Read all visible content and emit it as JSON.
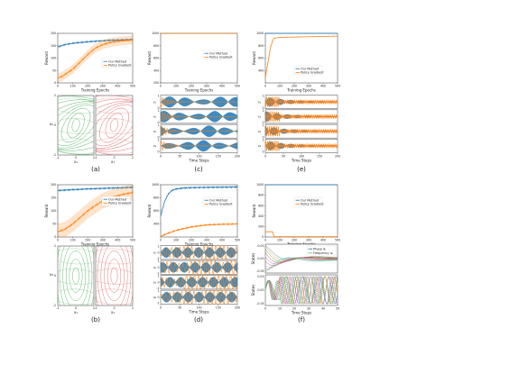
{
  "colors": {
    "ours": "#1f77b4",
    "pg": "#ff7f0e",
    "green": "#3aa84a",
    "red": "#d94f4f"
  },
  "legend": {
    "ours": "Our Method",
    "pg": "Policy Gradient"
  },
  "axis": {
    "reward": "Reward",
    "epochs": "Training Epochs",
    "steps": "Time Steps",
    "states": "States"
  },
  "panel_labels": [
    "(a)",
    "(b)",
    "(c)",
    "(d)",
    "(e)",
    "(f)"
  ],
  "phase_axis": {
    "x1": "x₁",
    "x2": "x₂"
  },
  "f_legend": {
    "phase": "Phase θᵢ",
    "freq": "Frequency ωᵢ"
  },
  "chart_data": [
    {
      "id": "a_top",
      "type": "line",
      "xlabel": "Training Epochs",
      "ylabel": "Reward",
      "xlim": [
        0,
        500
      ],
      "ylim": [
        0,
        200
      ],
      "xticks": [
        0,
        100,
        200,
        300,
        400,
        500
      ],
      "yticks": [
        0,
        50,
        100,
        150,
        200
      ],
      "series": [
        {
          "name": "Our Method",
          "x": [
            0,
            25,
            50,
            100,
            150,
            200,
            250,
            300,
            350,
            400,
            450,
            500
          ],
          "y": [
            145,
            150,
            155,
            160,
            163,
            166,
            168,
            170,
            172,
            173,
            174,
            175
          ]
        },
        {
          "name": "Policy Gradient",
          "x": [
            0,
            25,
            50,
            100,
            150,
            200,
            250,
            300,
            350,
            400,
            450,
            500
          ],
          "y": [
            20,
            25,
            35,
            55,
            85,
            115,
            140,
            155,
            163,
            168,
            171,
            173
          ]
        }
      ]
    },
    {
      "id": "c_top",
      "type": "line",
      "xlabel": "Training Epochs",
      "ylabel": "Reward",
      "xlim": [
        0,
        500
      ],
      "ylim": [
        200,
        1000
      ],
      "xticks": [
        0,
        100,
        200,
        300,
        400,
        500
      ],
      "yticks": [
        200,
        400,
        600,
        800,
        1000
      ],
      "series": [
        {
          "name": "Our Method",
          "x": [
            0,
            500
          ],
          "y": [
            1000,
            1000
          ]
        },
        {
          "name": "Policy Gradient",
          "x": [
            0,
            500
          ],
          "y": [
            1000,
            1000
          ]
        }
      ]
    },
    {
      "id": "e_top",
      "type": "line",
      "xlabel": "Training Epochs",
      "ylabel": "Reward",
      "xlim": [
        0,
        500
      ],
      "ylim": [
        200,
        1000
      ],
      "xticks": [
        0,
        100,
        200,
        300,
        400,
        500
      ],
      "yticks": [
        400,
        600,
        800,
        1000
      ],
      "series": [
        {
          "name": "Our Method",
          "x": [
            0,
            500
          ],
          "y": [
            1000,
            1000
          ]
        },
        {
          "name": "Policy Gradient",
          "x": [
            0,
            10,
            20,
            35,
            50,
            60,
            100,
            200,
            300,
            400,
            500
          ],
          "y": [
            280,
            420,
            560,
            760,
            880,
            920,
            935,
            940,
            945,
            950,
            955
          ]
        }
      ]
    },
    {
      "id": "b_top",
      "type": "line",
      "xlabel": "Training Epochs",
      "ylabel": "Reward",
      "xlim": [
        0,
        500
      ],
      "ylim": [
        0,
        200
      ],
      "xticks": [
        0,
        100,
        200,
        300,
        400,
        500
      ],
      "yticks": [
        0,
        50,
        100,
        150,
        200
      ],
      "series": [
        {
          "name": "Our Method",
          "x": [
            0,
            100,
            200,
            300,
            400,
            500
          ],
          "y": [
            178,
            181,
            184,
            186,
            188,
            190
          ]
        },
        {
          "name": "Policy Gradient",
          "x": [
            0,
            50,
            100,
            150,
            200,
            250,
            300,
            350,
            400,
            450,
            500
          ],
          "y": [
            20,
            30,
            50,
            75,
            100,
            120,
            138,
            150,
            158,
            165,
            170
          ]
        }
      ]
    },
    {
      "id": "d_top",
      "type": "line",
      "xlabel": "Training Epochs",
      "ylabel": "Reward",
      "xlim": [
        0,
        500
      ],
      "ylim": [
        200,
        1000
      ],
      "xticks": [
        0,
        100,
        200,
        300,
        400,
        500
      ],
      "yticks": [
        400,
        600,
        800,
        1000
      ],
      "series": [
        {
          "name": "Our Method",
          "x": [
            0,
            25,
            50,
            75,
            100,
            150,
            200,
            300,
            400,
            500
          ],
          "y": [
            520,
            740,
            860,
            915,
            935,
            950,
            955,
            960,
            962,
            965
          ]
        },
        {
          "name": "Policy Gradient",
          "x": [
            0,
            50,
            100,
            150,
            200,
            250,
            300,
            400,
            500
          ],
          "y": [
            210,
            260,
            300,
            330,
            355,
            370,
            385,
            395,
            400
          ]
        }
      ]
    },
    {
      "id": "f_top",
      "type": "line",
      "xlabel": "Training Epochs",
      "ylabel": "Reward",
      "xlim": [
        0,
        500
      ],
      "ylim": [
        0,
        1000
      ],
      "xticks": [
        0,
        100,
        200,
        300,
        400,
        500
      ],
      "yticks": [
        0,
        200,
        400,
        600,
        800,
        1000
      ],
      "series": [
        {
          "name": "Our Method",
          "x": [
            0,
            500
          ],
          "y": [
            1000,
            1000
          ]
        },
        {
          "name": "Policy Gradient",
          "x": [
            0,
            10,
            50,
            60,
            100,
            200,
            300,
            400,
            500
          ],
          "y": [
            100,
            100,
            100,
            5,
            5,
            5,
            5,
            5,
            5
          ]
        }
      ]
    },
    {
      "id": "c_bottom",
      "type": "line",
      "xlabel": "Time Steps",
      "xlim": [
        0,
        200
      ],
      "xticks": [
        0,
        50,
        100,
        150,
        200
      ],
      "yticks": [
        0,
        1
      ]
    },
    {
      "id": "e_bottom",
      "type": "line",
      "xlabel": "Time Steps",
      "xlim": [
        0,
        200
      ],
      "xticks": [
        0,
        50,
        100,
        150,
        200
      ],
      "yticks": [
        0,
        1
      ]
    },
    {
      "id": "d_bottom",
      "type": "line",
      "xlabel": "Time Steps",
      "xlim": [
        0,
        200
      ],
      "xticks": [
        0,
        50,
        100,
        150,
        200
      ],
      "yticks": [
        -1,
        0,
        1
      ]
    },
    {
      "id": "f_bottom",
      "type": "line",
      "xlabel": "Time Steps",
      "ylabel": "States",
      "xlim": [
        0,
        50
      ],
      "xticks": [
        0,
        10,
        20,
        30,
        40,
        50
      ],
      "yticks_top": [
        -0.05,
        0.0,
        0.05
      ],
      "yticks_bottom": [
        -0.05,
        0.0,
        0.05
      ]
    }
  ]
}
